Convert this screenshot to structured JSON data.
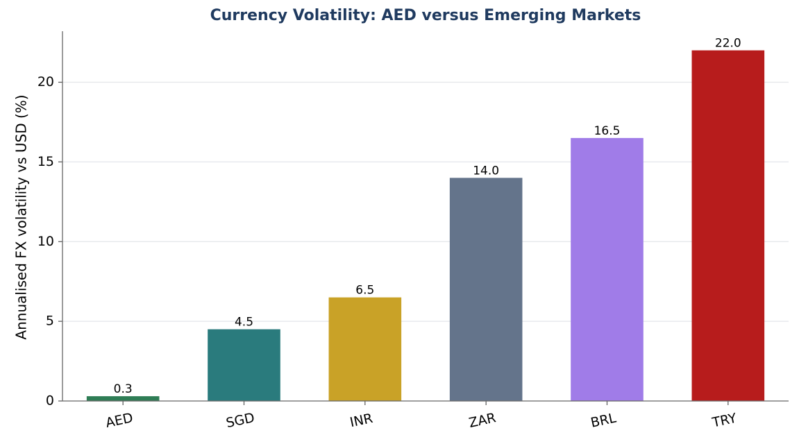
{
  "chart_data": {
    "type": "bar",
    "title": "Currency Volatility: AED versus Emerging Markets",
    "xlabel": "",
    "ylabel": "Annualised FX volatility vs USD (%)",
    "categories": [
      "AED",
      "SGD",
      "INR",
      "ZAR",
      "BRL",
      "TRY"
    ],
    "values": [
      0.3,
      4.5,
      6.5,
      14.0,
      16.5,
      22.0
    ],
    "value_labels": [
      "0.3",
      "4.5",
      "6.5",
      "14.0",
      "16.5",
      "22.0"
    ],
    "colors": [
      "#2e7d55",
      "#2a7b7d",
      "#c9a227",
      "#64748b",
      "#a07ce8",
      "#b71c1c"
    ],
    "yticks": [
      0,
      5,
      10,
      15,
      20
    ],
    "ylim": [
      0,
      23.2
    ],
    "grid": "horizontal",
    "legend": "none"
  }
}
